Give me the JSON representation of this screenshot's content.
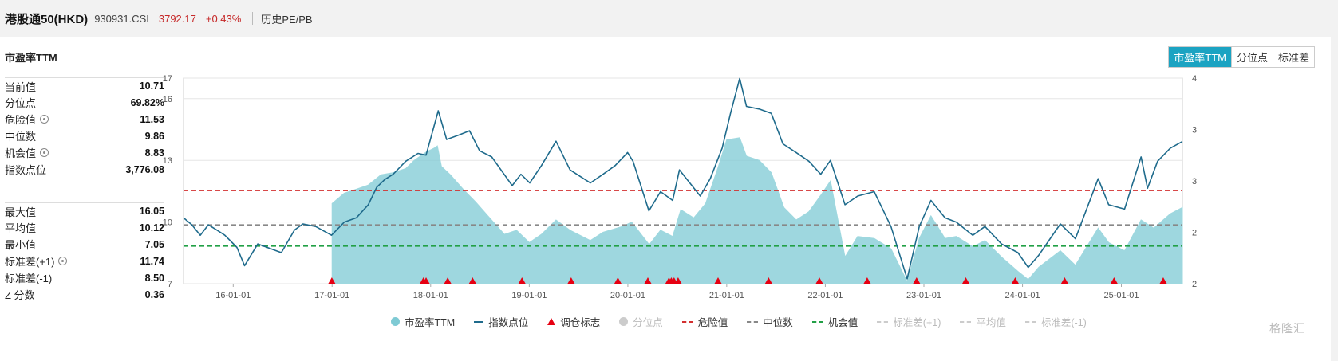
{
  "header": {
    "name": "港股通50(HKD)",
    "code": "930931.CSI",
    "price": "3792.17",
    "change": "+0.43%",
    "history_link": "历史PE/PB"
  },
  "panel": {
    "title": "市盈率TTM",
    "tabs": [
      {
        "label": "市盈率TTM",
        "active": true
      },
      {
        "label": "分位点",
        "active": false
      },
      {
        "label": "标准差",
        "active": false
      }
    ]
  },
  "stats_top": [
    {
      "label": "当前值",
      "value": "10.71",
      "gear": false
    },
    {
      "label": "分位点",
      "value": "69.82%",
      "gear": false
    },
    {
      "label": "危险值",
      "value": "11.53",
      "gear": true
    },
    {
      "label": "中位数",
      "value": "9.86",
      "gear": false
    },
    {
      "label": "机会值",
      "value": "8.83",
      "gear": true
    },
    {
      "label": "指数点位",
      "value": "3,776.08",
      "gear": false
    }
  ],
  "stats_bottom": [
    {
      "label": "最大值",
      "value": "16.05",
      "gear": false
    },
    {
      "label": "平均值",
      "value": "10.12",
      "gear": false
    },
    {
      "label": "最小值",
      "value": "7.05",
      "gear": false
    },
    {
      "label": "标准差(+1)",
      "value": "11.74",
      "gear": true
    },
    {
      "label": "标准差(-1)",
      "value": "8.50",
      "gear": false
    },
    {
      "label": "Z 分数",
      "value": "0.36",
      "gear": false
    }
  ],
  "legend": [
    {
      "label": "市盈率TTM",
      "kind": "dot",
      "color": "#7ecad4",
      "enabled": true
    },
    {
      "label": "指数点位",
      "kind": "line",
      "color": "#1f6b8c",
      "enabled": true
    },
    {
      "label": "调仓标志",
      "kind": "triangle",
      "color": "#e60012",
      "enabled": true
    },
    {
      "label": "分位点",
      "kind": "dot",
      "color": "#cccccc",
      "enabled": false
    },
    {
      "label": "危险值",
      "kind": "dash",
      "color": "#d32f2f",
      "enabled": true
    },
    {
      "label": "中位数",
      "kind": "dash",
      "color": "#888888",
      "enabled": true
    },
    {
      "label": "机会值",
      "kind": "dash",
      "color": "#22a046",
      "enabled": true
    },
    {
      "label": "标准差(+1)",
      "kind": "dash",
      "color": "#cccccc",
      "enabled": false
    },
    {
      "label": "平均值",
      "kind": "dash",
      "color": "#cccccc",
      "enabled": false
    },
    {
      "label": "标准差(-1)",
      "kind": "dash",
      "color": "#cccccc",
      "enabled": false
    }
  ],
  "watermark": "格隆汇",
  "chart_data": {
    "type": "line",
    "x_range": [
      "2015-07-01",
      "2025-08-15"
    ],
    "x_ticks": [
      "16-01-01",
      "17-01-01",
      "18-01-01",
      "19-01-01",
      "20-01-01",
      "21-01-01",
      "22-01-01",
      "23-01-01",
      "24-01-01",
      "25-01-01"
    ],
    "y_left": {
      "min": 7,
      "max": 17,
      "ticks": [
        7,
        10,
        13,
        16,
        17
      ]
    },
    "y_right": {
      "min": 2143,
      "max": 4505,
      "ticks": [
        "2,143",
        "2,734",
        "3,325",
        "3,916",
        "4,505"
      ]
    },
    "reference_lines": {
      "danger": 11.53,
      "median": 9.86,
      "opportunity": 8.83
    },
    "pe_ttm": {
      "name": "市盈率TTM",
      "color": "#7ecad4",
      "points": [
        [
          "2017-01-01",
          10.9
        ],
        [
          "2017-02-15",
          11.4
        ],
        [
          "2017-04-01",
          11.6
        ],
        [
          "2017-05-15",
          11.8
        ],
        [
          "2017-07-01",
          12.3
        ],
        [
          "2017-08-15",
          12.4
        ],
        [
          "2017-10-01",
          12.6
        ],
        [
          "2017-11-01",
          13.0
        ],
        [
          "2017-12-15",
          13.4
        ],
        [
          "2018-01-15",
          13.6
        ],
        [
          "2018-01-26",
          13.7
        ],
        [
          "2018-02-10",
          12.7
        ],
        [
          "2018-03-15",
          12.3
        ],
        [
          "2018-05-01",
          11.6
        ],
        [
          "2018-06-15",
          11.0
        ],
        [
          "2018-08-01",
          10.3
        ],
        [
          "2018-10-01",
          9.4
        ],
        [
          "2018-11-15",
          9.6
        ],
        [
          "2019-01-01",
          9.0
        ],
        [
          "2019-02-15",
          9.4
        ],
        [
          "2019-04-10",
          10.1
        ],
        [
          "2019-06-01",
          9.6
        ],
        [
          "2019-08-15",
          9.1
        ],
        [
          "2019-10-01",
          9.5
        ],
        [
          "2019-12-15",
          9.8
        ],
        [
          "2020-01-15",
          10.0
        ],
        [
          "2020-03-20",
          8.9
        ],
        [
          "2020-05-01",
          9.6
        ],
        [
          "2020-06-15",
          9.3
        ],
        [
          "2020-07-15",
          10.6
        ],
        [
          "2020-09-01",
          10.2
        ],
        [
          "2020-10-15",
          10.9
        ],
        [
          "2020-12-01",
          12.7
        ],
        [
          "2021-01-01",
          14.0
        ],
        [
          "2021-02-18",
          14.1
        ],
        [
          "2021-03-15",
          13.2
        ],
        [
          "2021-05-01",
          13.0
        ],
        [
          "2021-06-15",
          12.4
        ],
        [
          "2021-08-01",
          10.7
        ],
        [
          "2021-09-15",
          10.1
        ],
        [
          "2021-11-01",
          10.5
        ],
        [
          "2021-12-15",
          11.3
        ],
        [
          "2022-01-20",
          12.0
        ],
        [
          "2022-03-15",
          8.3
        ],
        [
          "2022-05-01",
          9.3
        ],
        [
          "2022-07-01",
          9.2
        ],
        [
          "2022-09-01",
          8.7
        ],
        [
          "2022-10-31",
          7.1
        ],
        [
          "2022-12-15",
          9.2
        ],
        [
          "2023-01-27",
          10.3
        ],
        [
          "2023-03-20",
          9.2
        ],
        [
          "2023-05-01",
          9.3
        ],
        [
          "2023-07-01",
          8.8
        ],
        [
          "2023-08-15",
          9.1
        ],
        [
          "2023-10-15",
          8.3
        ],
        [
          "2023-12-15",
          7.6
        ],
        [
          "2024-01-22",
          7.2
        ],
        [
          "2024-03-01",
          7.8
        ],
        [
          "2024-05-20",
          8.6
        ],
        [
          "2024-07-15",
          7.9
        ],
        [
          "2024-10-07",
          9.7
        ],
        [
          "2024-11-15",
          9.0
        ],
        [
          "2025-01-13",
          8.6
        ],
        [
          "2025-03-15",
          10.1
        ],
        [
          "2025-05-01",
          9.7
        ],
        [
          "2025-07-01",
          10.4
        ],
        [
          "2025-08-15",
          10.71
        ]
      ]
    },
    "index_level": {
      "name": "指数点位",
      "color": "#1f6b8c",
      "points": [
        [
          "2015-07-01",
          2900
        ],
        [
          "2015-08-01",
          2820
        ],
        [
          "2015-09-01",
          2700
        ],
        [
          "2015-10-01",
          2820
        ],
        [
          "2015-11-01",
          2760
        ],
        [
          "2015-12-01",
          2700
        ],
        [
          "2016-01-15",
          2560
        ],
        [
          "2016-02-12",
          2350
        ],
        [
          "2016-04-01",
          2600
        ],
        [
          "2016-06-27",
          2500
        ],
        [
          "2016-08-15",
          2760
        ],
        [
          "2016-09-15",
          2830
        ],
        [
          "2016-11-01",
          2800
        ],
        [
          "2016-12-30",
          2700
        ],
        [
          "2017-02-15",
          2850
        ],
        [
          "2017-04-01",
          2900
        ],
        [
          "2017-05-15",
          3050
        ],
        [
          "2017-06-15",
          3250
        ],
        [
          "2017-07-15",
          3340
        ],
        [
          "2017-08-15",
          3400
        ],
        [
          "2017-10-01",
          3550
        ],
        [
          "2017-11-15",
          3640
        ],
        [
          "2017-12-15",
          3620
        ],
        [
          "2018-01-29",
          4130
        ],
        [
          "2018-03-01",
          3800
        ],
        [
          "2018-04-15",
          3850
        ],
        [
          "2018-05-25",
          3900
        ],
        [
          "2018-07-01",
          3670
        ],
        [
          "2018-08-15",
          3600
        ],
        [
          "2018-10-30",
          3270
        ],
        [
          "2018-12-01",
          3400
        ],
        [
          "2019-01-03",
          3300
        ],
        [
          "2019-02-15",
          3500
        ],
        [
          "2019-04-10",
          3780
        ],
        [
          "2019-06-01",
          3450
        ],
        [
          "2019-08-15",
          3300
        ],
        [
          "2019-10-01",
          3400
        ],
        [
          "2019-11-15",
          3500
        ],
        [
          "2019-12-31",
          3650
        ],
        [
          "2020-01-20",
          3550
        ],
        [
          "2020-03-19",
          2980
        ],
        [
          "2020-05-01",
          3200
        ],
        [
          "2020-06-15",
          3100
        ],
        [
          "2020-07-10",
          3450
        ],
        [
          "2020-09-25",
          3150
        ],
        [
          "2020-11-01",
          3350
        ],
        [
          "2020-12-15",
          3700
        ],
        [
          "2021-01-15",
          4100
        ],
        [
          "2021-02-18",
          4500
        ],
        [
          "2021-03-15",
          4180
        ],
        [
          "2021-05-01",
          4150
        ],
        [
          "2021-06-15",
          4100
        ],
        [
          "2021-07-28",
          3750
        ],
        [
          "2021-09-15",
          3650
        ],
        [
          "2021-11-01",
          3550
        ],
        [
          "2021-12-15",
          3400
        ],
        [
          "2022-01-20",
          3560
        ],
        [
          "2022-03-15",
          3050
        ],
        [
          "2022-05-01",
          3150
        ],
        [
          "2022-07-01",
          3200
        ],
        [
          "2022-09-01",
          2800
        ],
        [
          "2022-10-31",
          2200
        ],
        [
          "2022-12-15",
          2800
        ],
        [
          "2023-01-27",
          3100
        ],
        [
          "2023-03-20",
          2900
        ],
        [
          "2023-05-01",
          2850
        ],
        [
          "2023-07-01",
          2700
        ],
        [
          "2023-08-15",
          2800
        ],
        [
          "2023-10-15",
          2600
        ],
        [
          "2023-12-15",
          2500
        ],
        [
          "2024-01-22",
          2330
        ],
        [
          "2024-03-01",
          2470
        ],
        [
          "2024-05-20",
          2830
        ],
        [
          "2024-07-15",
          2660
        ],
        [
          "2024-10-07",
          3350
        ],
        [
          "2024-11-15",
          3050
        ],
        [
          "2025-01-13",
          3000
        ],
        [
          "2025-03-15",
          3600
        ],
        [
          "2025-04-08",
          3240
        ],
        [
          "2025-05-15",
          3550
        ],
        [
          "2025-07-01",
          3700
        ],
        [
          "2025-08-15",
          3776
        ]
      ]
    },
    "rebalance_markers": [
      "2016-12-31",
      "2017-12-05",
      "2017-12-15",
      "2018-03-05",
      "2018-06-05",
      "2018-12-05",
      "2019-06-05",
      "2019-11-25",
      "2020-03-15",
      "2020-06-01",
      "2020-06-10",
      "2020-06-20",
      "2020-07-05",
      "2020-11-30",
      "2021-06-05",
      "2021-12-10",
      "2022-06-05",
      "2022-12-05",
      "2023-06-05",
      "2023-12-05",
      "2024-06-05",
      "2024-12-05",
      "2025-06-05"
    ]
  }
}
